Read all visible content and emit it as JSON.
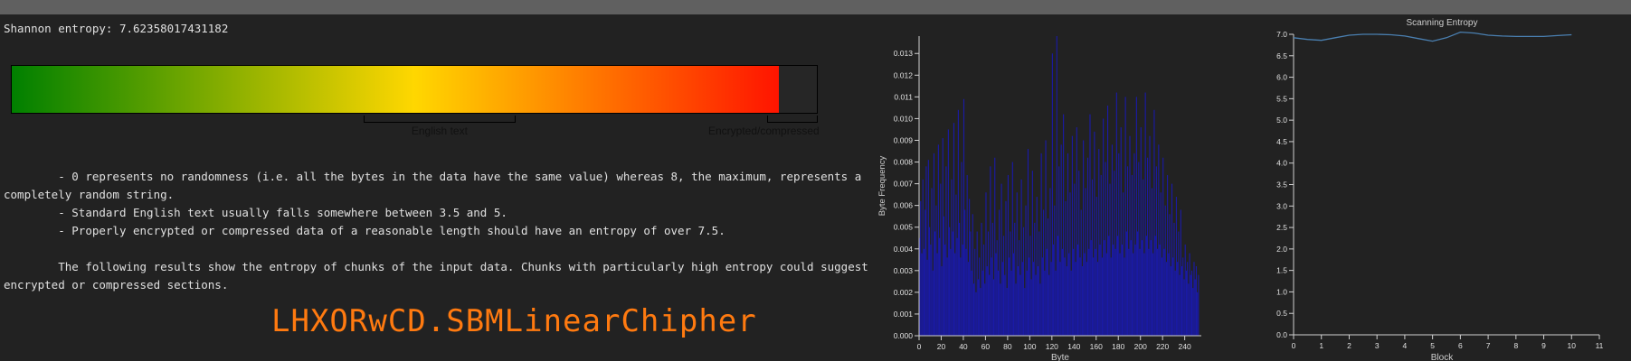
{
  "entropy": {
    "label": "Shannon entropy:",
    "value": "7.62358017431182",
    "max": 8
  },
  "meter": {
    "markers": [
      {
        "label": "English text",
        "from": 3.5,
        "to": 5
      },
      {
        "label": "Encrypted/compressed",
        "from": 7.5,
        "to": 8
      }
    ]
  },
  "description": {
    "line1": "        - 0 represents no randomness (i.e. all the bytes in the data have the same value) whereas 8, the maximum, represents a completely random string.",
    "line2": "        - Standard English text usually falls somewhere between 3.5 and 5.",
    "line3": "        - Properly encrypted or compressed data of a reasonable length should have an entropy of over 7.5.",
    "line4": "        The following results show the entropy of chunks of the input data. Chunks with particularly high entropy could suggest encrypted or compressed sections."
  },
  "watermark": "LHXORwCD.SBMLinearChipher",
  "chart_data": [
    {
      "type": "bar",
      "title": "",
      "xlabel": "Byte",
      "ylabel": "Byte Frequency",
      "xlim": [
        0,
        255
      ],
      "ylim": [
        0,
        0.0138
      ],
      "xticks": [
        0,
        20,
        40,
        60,
        80,
        100,
        120,
        140,
        160,
        180,
        200,
        220,
        240
      ],
      "yticks": [
        0.0,
        0.001,
        0.002,
        0.003,
        0.004,
        0.005,
        0.006,
        0.007,
        0.008,
        0.009,
        0.01,
        0.011,
        0.012,
        0.013
      ],
      "bar_color": "#1a1aa8",
      "values": [
        0.0045,
        0.0062,
        0.0038,
        0.0072,
        0.004,
        0.0058,
        0.0078,
        0.0035,
        0.0081,
        0.005,
        0.0042,
        0.0068,
        0.003,
        0.0084,
        0.0048,
        0.006,
        0.0038,
        0.0088,
        0.0045,
        0.007,
        0.0032,
        0.0091,
        0.0055,
        0.0042,
        0.0078,
        0.0036,
        0.0095,
        0.005,
        0.004,
        0.0072,
        0.0048,
        0.0098,
        0.0038,
        0.0065,
        0.0045,
        0.0104,
        0.0052,
        0.0036,
        0.008,
        0.0042,
        0.0109,
        0.0058,
        0.004,
        0.0074,
        0.0034,
        0.0063,
        0.0048,
        0.003,
        0.0056,
        0.0024,
        0.004,
        0.002,
        0.0048,
        0.0026,
        0.0036,
        0.0022,
        0.0052,
        0.003,
        0.0042,
        0.0024,
        0.0066,
        0.0032,
        0.0048,
        0.0028,
        0.0078,
        0.0036,
        0.0052,
        0.0026,
        0.0082,
        0.0038,
        0.0044,
        0.003,
        0.0058,
        0.0024,
        0.007,
        0.0034,
        0.0046,
        0.0028,
        0.0062,
        0.0022,
        0.0074,
        0.0036,
        0.0048,
        0.003,
        0.008,
        0.0038,
        0.0052,
        0.0024,
        0.0066,
        0.0032,
        0.0044,
        0.0028,
        0.0072,
        0.0034,
        0.005,
        0.0022,
        0.006,
        0.003,
        0.0086,
        0.0036,
        0.0046,
        0.0026,
        0.0076,
        0.0034,
        0.0052,
        0.0028,
        0.0064,
        0.0032,
        0.0048,
        0.0024,
        0.0084,
        0.0036,
        0.0058,
        0.003,
        0.009,
        0.004,
        0.0054,
        0.0028,
        0.0068,
        0.0034,
        0.013,
        0.0042,
        0.006,
        0.003,
        0.0138,
        0.0046,
        0.0078,
        0.0034,
        0.0088,
        0.004,
        0.0102,
        0.0036,
        0.0062,
        0.0032,
        0.0084,
        0.0038,
        0.0066,
        0.003,
        0.0092,
        0.004,
        0.007,
        0.0034,
        0.0096,
        0.0042,
        0.0076,
        0.0036,
        0.0058,
        0.0032,
        0.009,
        0.0038,
        0.0068,
        0.0034,
        0.0082,
        0.004,
        0.0102,
        0.0044,
        0.0072,
        0.0036,
        0.0094,
        0.004,
        0.0064,
        0.0034,
        0.0086,
        0.0042,
        0.0074,
        0.0036,
        0.01,
        0.0044,
        0.008,
        0.0038,
        0.0106,
        0.0046,
        0.007,
        0.0036,
        0.0088,
        0.0042,
        0.0076,
        0.004,
        0.0112,
        0.0046,
        0.0084,
        0.0038,
        0.0096,
        0.0042,
        0.0066,
        0.0036,
        0.011,
        0.0048,
        0.0078,
        0.004,
        0.0092,
        0.0044,
        0.0074,
        0.0038,
        0.0084,
        0.0042,
        0.011,
        0.0048,
        0.008,
        0.004,
        0.0096,
        0.0044,
        0.0072,
        0.0038,
        0.0112,
        0.0046,
        0.0082,
        0.004,
        0.0092,
        0.0044,
        0.0068,
        0.0038,
        0.0104,
        0.0046,
        0.0078,
        0.004,
        0.0088,
        0.0042,
        0.0066,
        0.0036,
        0.0082,
        0.004,
        0.006,
        0.0034,
        0.0074,
        0.0038,
        0.0056,
        0.0032,
        0.007,
        0.0036,
        0.0052,
        0.003,
        0.0064,
        0.0034,
        0.0048,
        0.0028,
        0.0058,
        0.0032,
        0.0036,
        0.0026,
        0.0042,
        0.003,
        0.0034,
        0.0024,
        0.0038,
        0.0028,
        0.003,
        0.0022,
        0.0034,
        0.0026,
        0.0032,
        0.002,
        0.0028
      ]
    },
    {
      "type": "line",
      "title": "Scanning Entropy",
      "xlabel": "Block",
      "ylabel": "",
      "xlim": [
        0,
        11
      ],
      "ylim": [
        0,
        7.0
      ],
      "xticks": [
        0,
        1,
        2,
        3,
        4,
        5,
        6,
        7,
        8,
        9,
        10,
        11
      ],
      "yticks": [
        0.0,
        0.5,
        1.0,
        1.5,
        2.0,
        2.5,
        3.0,
        3.5,
        4.0,
        4.5,
        5.0,
        5.5,
        6.0,
        6.5,
        7.0
      ],
      "line_color": "#4a7fb0",
      "x": [
        0,
        0.5,
        1,
        1.5,
        2,
        2.5,
        3,
        3.5,
        4,
        4.5,
        5,
        5.5,
        6,
        6.5,
        7,
        7.5,
        8,
        8.5,
        9,
        9.5,
        10
      ],
      "y": [
        6.92,
        6.88,
        6.86,
        6.92,
        6.98,
        7.0,
        7.0,
        6.99,
        6.96,
        6.9,
        6.84,
        6.92,
        7.05,
        7.03,
        6.98,
        6.96,
        6.95,
        6.95,
        6.95,
        6.97,
        6.99
      ]
    }
  ]
}
